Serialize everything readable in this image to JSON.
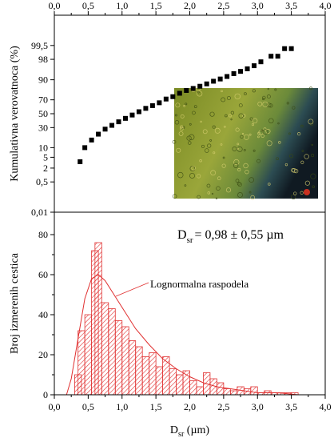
{
  "chart_data": [
    {
      "type": "scatter",
      "ylabel": "Kumulativna verovatnoca (%)",
      "x_top_tick_labels": [
        "0,0",
        "0,5",
        "1,0",
        "1,5",
        "2,0",
        "2,5",
        "3,0",
        "3,5",
        "4,0"
      ],
      "y_scale": "probability",
      "y_tick_labels": [
        "0,01",
        "0,5",
        "2",
        "5",
        "10",
        "30",
        "50",
        "70",
        "90",
        "98",
        "99,5"
      ],
      "xlim": [
        0,
        4
      ],
      "ylim": [
        0.01,
        99.99
      ],
      "inset": "micrograph",
      "series": [
        {
          "marker": "filled-square",
          "color": "#000000",
          "points": [
            [
              0.38,
              3.5
            ],
            [
              0.45,
              10
            ],
            [
              0.55,
              16
            ],
            [
              0.65,
              22
            ],
            [
              0.75,
              28
            ],
            [
              0.85,
              33
            ],
            [
              0.95,
              38
            ],
            [
              1.05,
              43
            ],
            [
              1.15,
              48
            ],
            [
              1.25,
              53
            ],
            [
              1.35,
              58
            ],
            [
              1.45,
              62
            ],
            [
              1.55,
              66
            ],
            [
              1.65,
              71
            ],
            [
              1.75,
              74
            ],
            [
              1.85,
              78
            ],
            [
              1.95,
              81
            ],
            [
              2.05,
              83
            ],
            [
              2.15,
              85
            ],
            [
              2.25,
              87
            ],
            [
              2.35,
              89
            ],
            [
              2.45,
              90.5
            ],
            [
              2.55,
              92
            ],
            [
              2.65,
              93.5
            ],
            [
              2.75,
              94.5
            ],
            [
              2.85,
              95.5
            ],
            [
              2.95,
              96.5
            ],
            [
              3.05,
              97.5
            ],
            [
              3.2,
              98.5
            ],
            [
              3.3,
              98.5
            ],
            [
              3.4,
              99.3
            ],
            [
              3.5,
              99.3
            ]
          ]
        }
      ]
    },
    {
      "type": "bar",
      "xlabel": "D",
      "xlabel_sub": "sr",
      "xlabel_unit": " (µm)",
      "ylabel": "Broj izmerenih cestica",
      "x_tick_labels": [
        "0,0",
        "0,5",
        "1,0",
        "1,5",
        "2,0",
        "2,5",
        "3,0",
        "3,5",
        "4,0"
      ],
      "y_tick_labels": [
        "0",
        "20",
        "40",
        "60",
        "80"
      ],
      "xlim": [
        0,
        4
      ],
      "ylim": [
        0,
        88
      ],
      "bin_width": 0.1,
      "bar_color": "#e03030",
      "bar_fill": "hatched",
      "bins": [
        [
          0.3,
          10
        ],
        [
          0.35,
          32
        ],
        [
          0.45,
          40
        ],
        [
          0.55,
          72
        ],
        [
          0.6,
          76
        ],
        [
          0.7,
          46
        ],
        [
          0.8,
          43
        ],
        [
          0.9,
          37
        ],
        [
          1.0,
          34
        ],
        [
          1.1,
          27
        ],
        [
          1.2,
          24
        ],
        [
          1.3,
          19
        ],
        [
          1.4,
          21
        ],
        [
          1.5,
          14
        ],
        [
          1.6,
          19
        ],
        [
          1.7,
          13
        ],
        [
          1.8,
          10
        ],
        [
          1.9,
          12
        ],
        [
          2.0,
          7
        ],
        [
          2.1,
          4
        ],
        [
          2.2,
          11
        ],
        [
          2.3,
          8
        ],
        [
          2.4,
          6
        ],
        [
          2.5,
          3
        ],
        [
          2.6,
          2
        ],
        [
          2.7,
          4
        ],
        [
          2.8,
          3
        ],
        [
          2.9,
          4
        ],
        [
          3.0,
          1
        ],
        [
          3.1,
          2
        ],
        [
          3.2,
          1
        ],
        [
          3.3,
          1
        ],
        [
          3.4,
          1
        ],
        [
          3.5,
          1
        ]
      ],
      "fit": {
        "type": "lognormal",
        "label": "Lognormalna raspodela",
        "color": "#e03030",
        "points": [
          [
            0.18,
            0
          ],
          [
            0.25,
            8
          ],
          [
            0.35,
            28
          ],
          [
            0.45,
            48
          ],
          [
            0.55,
            58
          ],
          [
            0.65,
            60
          ],
          [
            0.75,
            57
          ],
          [
            0.9,
            49
          ],
          [
            1.05,
            41
          ],
          [
            1.2,
            33
          ],
          [
            1.4,
            25
          ],
          [
            1.6,
            18
          ],
          [
            1.8,
            13
          ],
          [
            2.0,
            9
          ],
          [
            2.2,
            6
          ],
          [
            2.4,
            4
          ],
          [
            2.6,
            3
          ],
          [
            2.8,
            2
          ],
          [
            3.0,
            1
          ],
          [
            3.3,
            1
          ],
          [
            3.6,
            0
          ]
        ]
      },
      "annotation": {
        "prefix": "D",
        "sub": "sr",
        "value": "= 0,98 ± 0,55 µm"
      }
    }
  ]
}
